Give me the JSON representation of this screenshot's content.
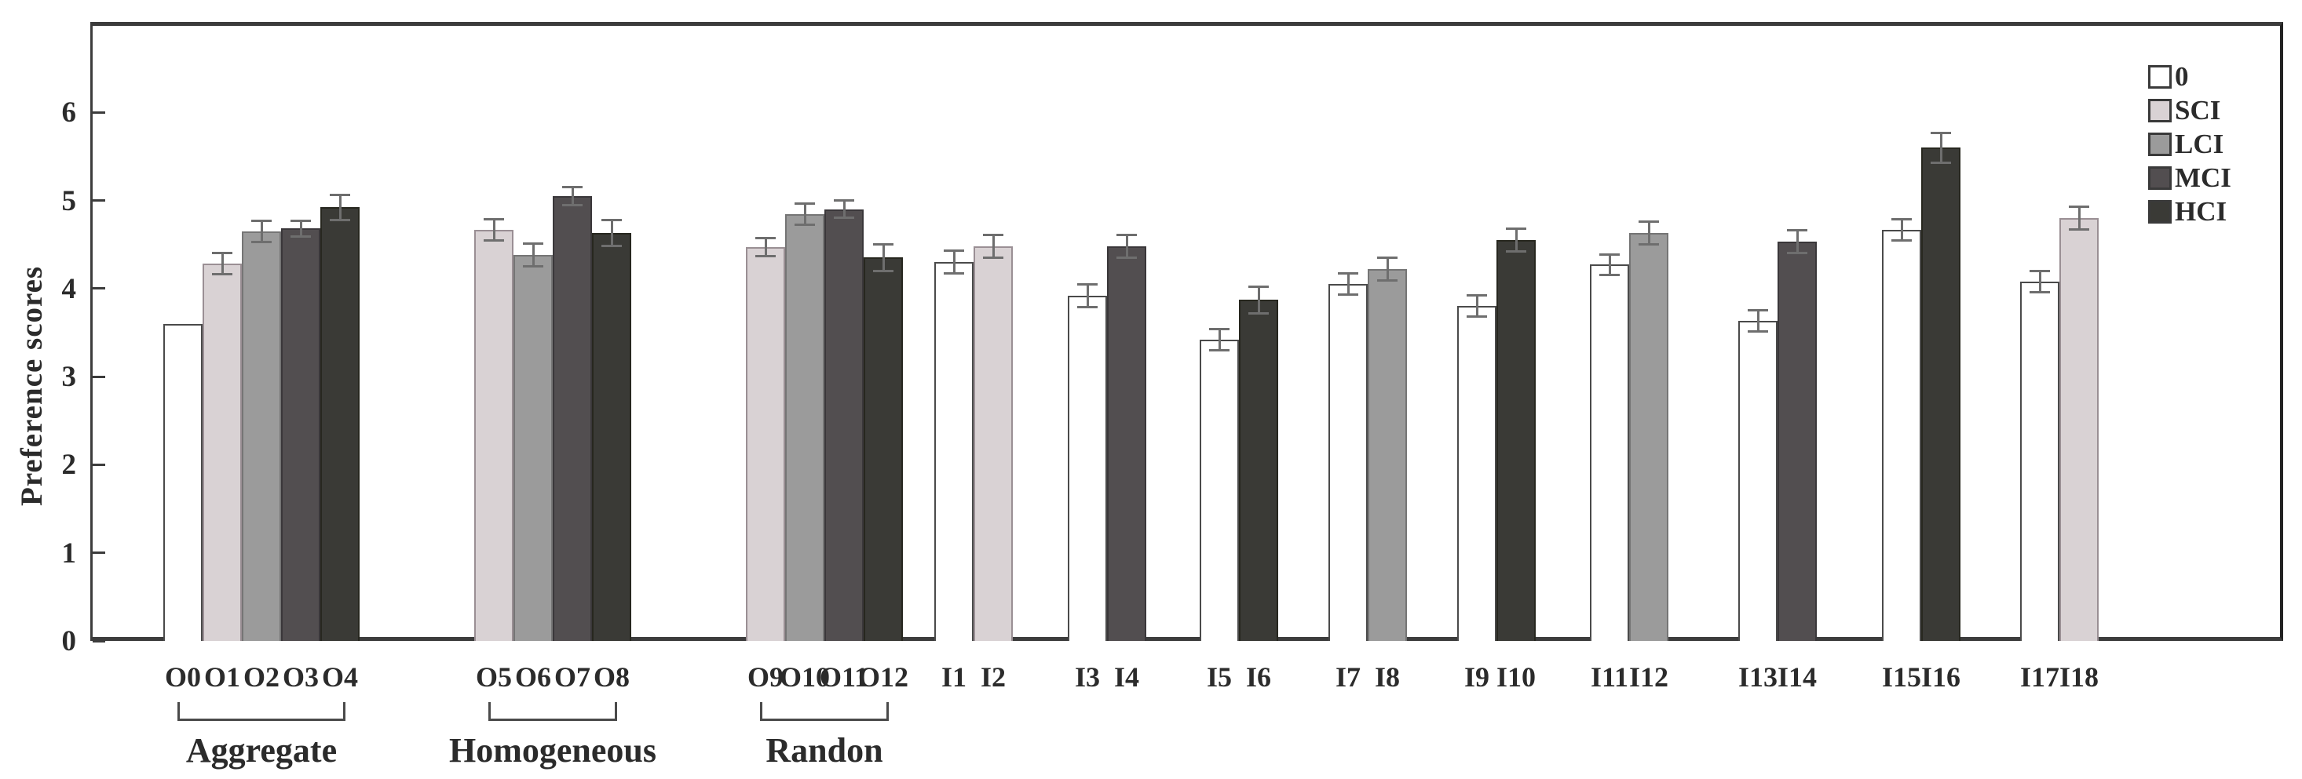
{
  "chart_data": {
    "type": "bar",
    "title": "",
    "xlabel": "",
    "ylabel": "Preference scores",
    "ylim": [
      0,
      7
    ],
    "yticks": [
      0,
      1,
      2,
      3,
      4,
      5,
      6
    ],
    "grid": false,
    "legend_position": "top-right-inside",
    "legend": [
      {
        "name": "0",
        "color": "#ffffff",
        "border": "#4a4a4a"
      },
      {
        "name": "SCI",
        "color": "#d9d2d4",
        "border": "#9a8f94"
      },
      {
        "name": "LCI",
        "color": "#9b9b9b",
        "border": "#757575"
      },
      {
        "name": "MCI",
        "color": "#524e50",
        "border": "#3a373a"
      },
      {
        "name": "HCI",
        "color": "#3a3a36",
        "border": "#27271f"
      }
    ],
    "groups": [
      {
        "caption": "Aggregate",
        "bars": [
          {
            "label": "O0",
            "series": "0",
            "value": 3.6,
            "err": null
          },
          {
            "label": "O1",
            "series": "SCI",
            "value": 4.28,
            "err": 0.12
          },
          {
            "label": "O2",
            "series": "LCI",
            "value": 4.65,
            "err": 0.12
          },
          {
            "label": "O3",
            "series": "MCI",
            "value": 4.68,
            "err": 0.09
          },
          {
            "label": "O4",
            "series": "HCI",
            "value": 4.92,
            "err": 0.14
          }
        ]
      },
      {
        "caption": "Homogeneous",
        "bars": [
          {
            "label": "O5",
            "series": "SCI",
            "value": 4.67,
            "err": 0.12
          },
          {
            "label": "O6",
            "series": "LCI",
            "value": 4.38,
            "err": 0.13
          },
          {
            "label": "O7",
            "series": "MCI",
            "value": 5.05,
            "err": 0.1
          },
          {
            "label": "O8",
            "series": "HCI",
            "value": 4.63,
            "err": 0.15
          }
        ]
      },
      {
        "caption": "Randon",
        "bars": [
          {
            "label": "O9",
            "series": "SCI",
            "value": 4.47,
            "err": 0.1
          },
          {
            "label": "O10",
            "series": "LCI",
            "value": 4.84,
            "err": 0.12
          },
          {
            "label": "O11",
            "series": "MCI",
            "value": 4.9,
            "err": 0.1
          },
          {
            "label": "O12",
            "series": "HCI",
            "value": 4.35,
            "err": 0.15
          }
        ]
      },
      {
        "caption": null,
        "bars": [
          {
            "label": "I1",
            "series": "0",
            "value": 4.3,
            "err": 0.13
          },
          {
            "label": "I2",
            "series": "SCI",
            "value": 4.48,
            "err": 0.13
          }
        ]
      },
      {
        "caption": null,
        "bars": [
          {
            "label": "I3",
            "series": "0",
            "value": 3.92,
            "err": 0.13
          },
          {
            "label": "I4",
            "series": "MCI",
            "value": 4.48,
            "err": 0.13
          }
        ]
      },
      {
        "caption": null,
        "bars": [
          {
            "label": "I5",
            "series": "0",
            "value": 3.42,
            "err": 0.12
          },
          {
            "label": "I6",
            "series": "HCI",
            "value": 3.87,
            "err": 0.15
          }
        ]
      },
      {
        "caption": null,
        "bars": [
          {
            "label": "I7",
            "series": "0",
            "value": 4.05,
            "err": 0.12
          },
          {
            "label": "I8",
            "series": "LCI",
            "value": 4.22,
            "err": 0.13
          }
        ]
      },
      {
        "caption": null,
        "bars": [
          {
            "label": "I9",
            "series": "0",
            "value": 3.8,
            "err": 0.12
          },
          {
            "label": "I10",
            "series": "HCI",
            "value": 4.55,
            "err": 0.13
          }
        ]
      },
      {
        "caption": null,
        "bars": [
          {
            "label": "I11",
            "series": "0",
            "value": 4.27,
            "err": 0.12
          },
          {
            "label": "I12",
            "series": "LCI",
            "value": 4.63,
            "err": 0.13
          }
        ]
      },
      {
        "caption": null,
        "bars": [
          {
            "label": "I13",
            "series": "0",
            "value": 3.63,
            "err": 0.12
          },
          {
            "label": "I14",
            "series": "MCI",
            "value": 4.53,
            "err": 0.13
          }
        ]
      },
      {
        "caption": null,
        "bars": [
          {
            "label": "I15",
            "series": "0",
            "value": 4.67,
            "err": 0.12
          },
          {
            "label": "I16",
            "series": "HCI",
            "value": 5.6,
            "err": 0.17
          }
        ]
      },
      {
        "caption": null,
        "bars": [
          {
            "label": "I17",
            "series": "0",
            "value": 4.08,
            "err": 0.12
          },
          {
            "label": "I18",
            "series": "SCI",
            "value": 4.8,
            "err": 0.13
          }
        ]
      }
    ]
  }
}
